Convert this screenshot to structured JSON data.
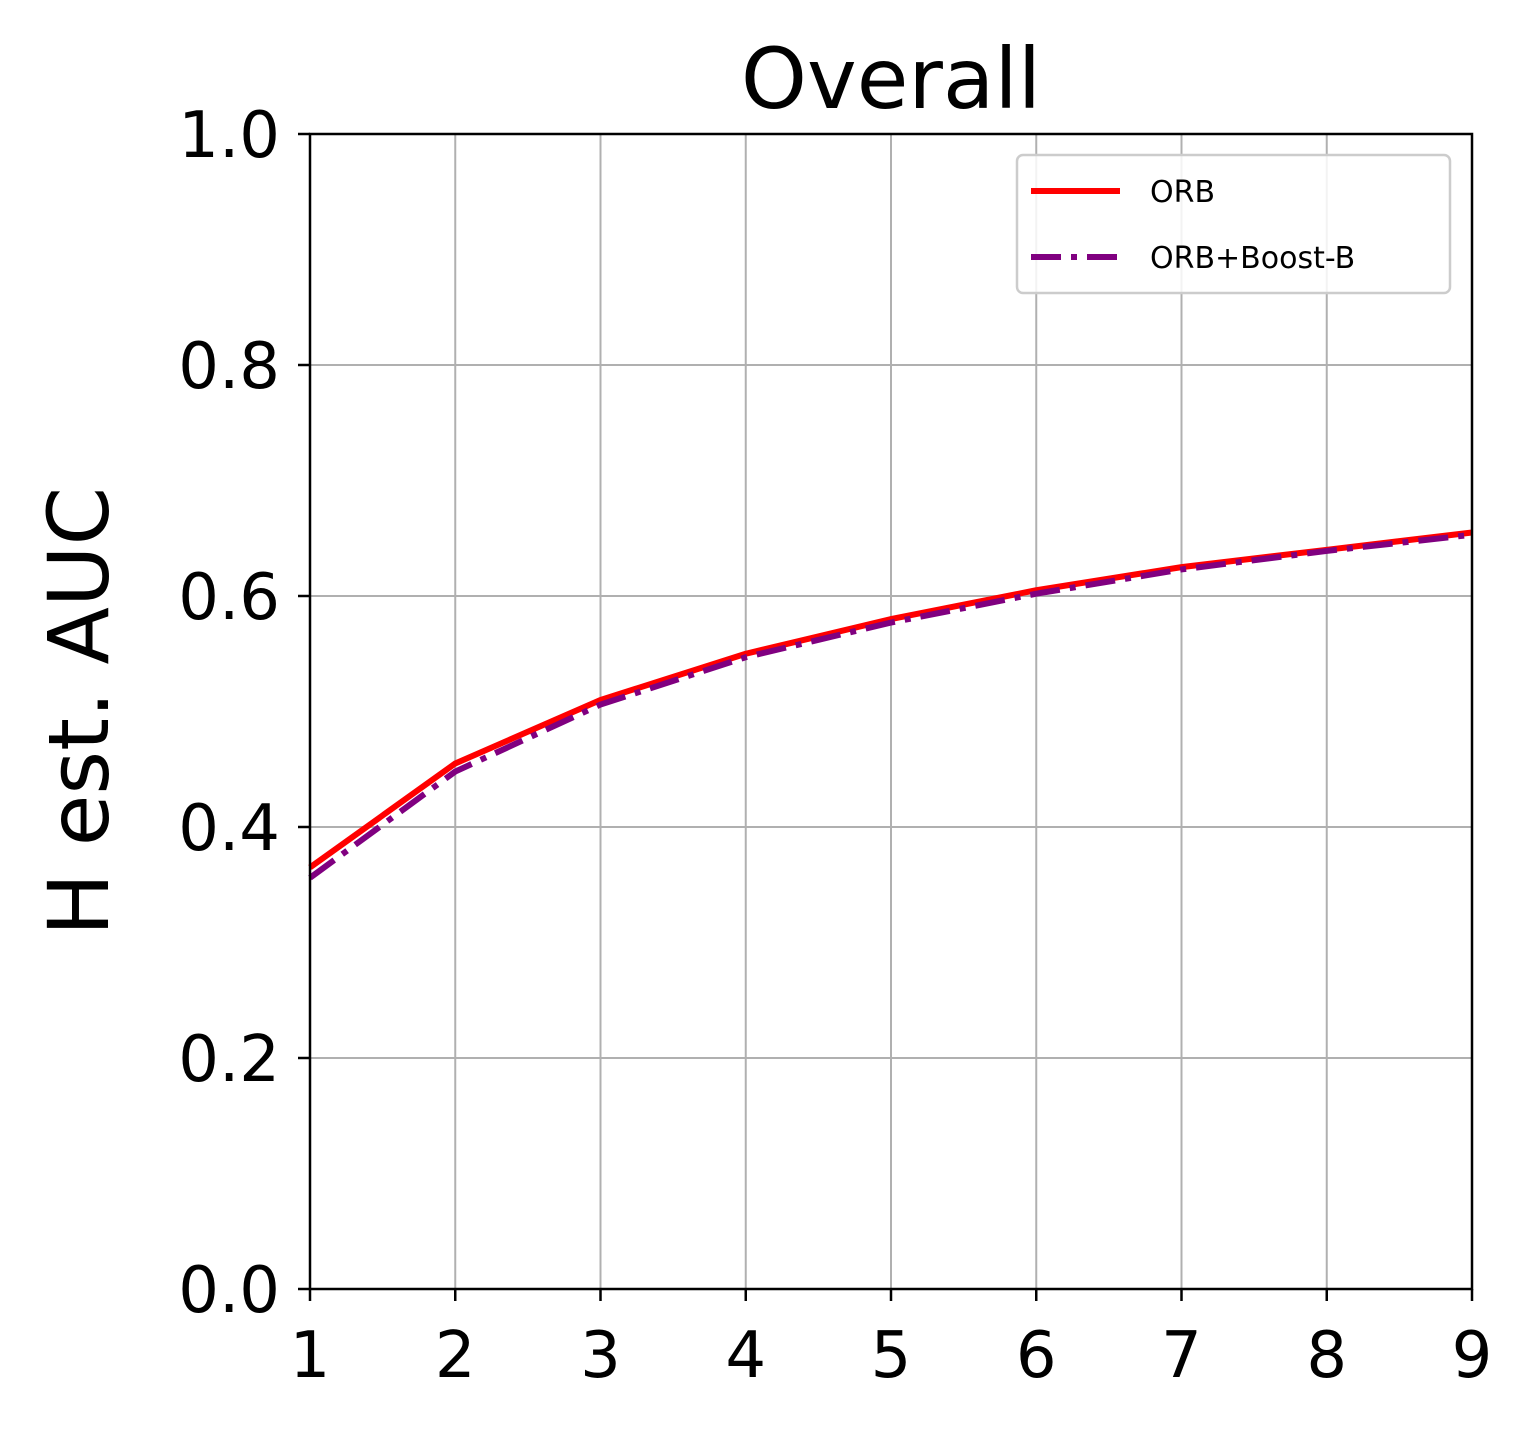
{
  "chart_data": {
    "type": "line",
    "title": "Overall",
    "xlabel": "",
    "ylabel": "H est. AUC",
    "x": [
      1,
      2,
      3,
      4,
      5,
      6,
      7,
      8,
      9
    ],
    "xlim": [
      1,
      9
    ],
    "ylim": [
      0.0,
      1.0
    ],
    "xticks": [
      "1",
      "2",
      "3",
      "4",
      "5",
      "6",
      "7",
      "8",
      "9"
    ],
    "yticks": [
      "0.0",
      "0.2",
      "0.4",
      "0.6",
      "0.8",
      "1.0"
    ],
    "grid": true,
    "legend_position": "top-right",
    "series": [
      {
        "name": "ORB",
        "color": "#ff0000",
        "style": "solid",
        "values": [
          0.365,
          0.455,
          0.51,
          0.55,
          0.58,
          0.605,
          0.625,
          0.64,
          0.655
        ]
      },
      {
        "name": "ORB+Boost-B",
        "color": "#800080",
        "style": "dashdot",
        "values": [
          0.356,
          0.448,
          0.506,
          0.547,
          0.577,
          0.602,
          0.623,
          0.639,
          0.653
        ]
      }
    ]
  }
}
